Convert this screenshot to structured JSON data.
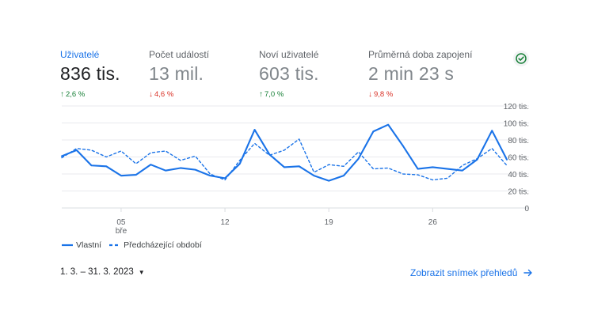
{
  "metrics": [
    {
      "label": "Uživatelé",
      "value": "836 tis.",
      "change": "2,6 %",
      "direction": "up"
    },
    {
      "label": "Počet událostí",
      "value": "13 mil.",
      "change": "4,6 %",
      "direction": "down"
    },
    {
      "label": "Noví uživatelé",
      "value": "603 tis.",
      "change": "7,0 %",
      "direction": "up"
    },
    {
      "label": "Průměrná doba zapojení",
      "value": "2 min 23 s",
      "change": "9,8 %",
      "direction": "down"
    }
  ],
  "status_icon": "check-circle-icon",
  "colors": {
    "accent": "#1a73e8",
    "up": "#188038",
    "down": "#d93025"
  },
  "chart_data": {
    "type": "line",
    "x": [
      1,
      2,
      3,
      4,
      5,
      6,
      7,
      8,
      9,
      10,
      11,
      12,
      13,
      14,
      15,
      16,
      17,
      18,
      19,
      20,
      21,
      22,
      23,
      24,
      25,
      26,
      27,
      28,
      29,
      30,
      31
    ],
    "x_ticks": [
      {
        "x": 5,
        "label": "05",
        "sublabel": "bře"
      },
      {
        "x": 12,
        "label": "12",
        "sublabel": ""
      },
      {
        "x": 19,
        "label": "19",
        "sublabel": ""
      },
      {
        "x": 26,
        "label": "26",
        "sublabel": ""
      }
    ],
    "y_ticks": [
      "0",
      "20 tis.",
      "40 tis.",
      "60 tis.",
      "80 tis.",
      "100 tis.",
      "120 tis."
    ],
    "ylim": [
      0,
      120
    ],
    "grid": true,
    "series": [
      {
        "name": "Vlastní",
        "style": "solid",
        "values": [
          61,
          68,
          50,
          49,
          38,
          39,
          51,
          44,
          47,
          45,
          38,
          35,
          52,
          92,
          63,
          48,
          49,
          38,
          32,
          38,
          58,
          90,
          98,
          73,
          46,
          48,
          46,
          44,
          57,
          91,
          57
        ]
      },
      {
        "name": "Předcházející období",
        "style": "dashed",
        "values": [
          59,
          70,
          68,
          60,
          67,
          52,
          65,
          67,
          56,
          61,
          40,
          33,
          56,
          76,
          62,
          68,
          81,
          42,
          51,
          49,
          66,
          46,
          47,
          40,
          39,
          33,
          35,
          50,
          58,
          70,
          50
        ]
      }
    ]
  },
  "date_range": "1. 3. – 31. 3. 2023",
  "report_link": "Zobrazit snímek přehledů"
}
